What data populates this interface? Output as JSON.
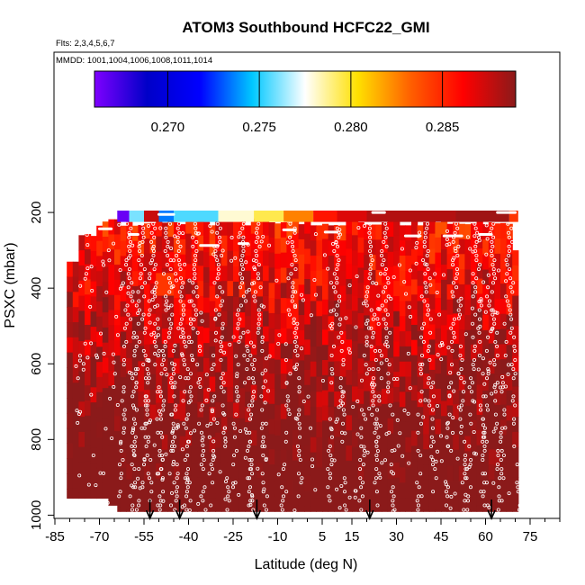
{
  "chart_data": {
    "type": "heatmap",
    "title": "ATOM3 Southbound HCFC22_GMI",
    "subtitle_flights": "Flts: 2,3,4,5,6,7",
    "subtitle_dates": "MMDD: 1001,1004,1006,1008,1011,1014",
    "xlabel": "Latitude (deg N)",
    "ylabel": "PSXC (mbar)",
    "xlim": [
      -85,
      85
    ],
    "ylim": [
      1000,
      0
    ],
    "y_reversed": true,
    "x_ticks": [
      -85,
      -70,
      -55,
      -40,
      -25,
      -10,
      5,
      15,
      30,
      45,
      60,
      75
    ],
    "x_tick_labels": [
      "-85",
      "-70",
      "-55",
      "-40",
      "-25",
      "-10",
      "5",
      "15",
      "30",
      "45",
      "60",
      "75"
    ],
    "y_ticks": [
      200,
      400,
      600,
      800,
      1000
    ],
    "y_tick_labels": [
      "200",
      "400",
      "600",
      "800",
      "1000"
    ],
    "colorbar": {
      "range": [
        0.266,
        0.289
      ],
      "ticks": [
        0.27,
        0.275,
        0.28,
        0.285
      ],
      "tick_labels": [
        "0.270",
        "0.275",
        "0.280",
        "0.285"
      ],
      "colors": [
        "#7f00ff",
        "#0000c8",
        "#0000ff",
        "#00c8ff",
        "#ffffff",
        "#ffe000",
        "#ff6000",
        "#ff0000",
        "#8b1a1a"
      ]
    },
    "curtain": {
      "lat_range": [
        -81,
        71
      ],
      "top_pressure": 190,
      "bottom_pressure": 990,
      "typical_value": 0.2885,
      "high_altitude_strip": {
        "pressure_range": [
          195,
          225
        ],
        "segments": [
          {
            "lat": [
              -64,
              -60
            ],
            "value": 0.2665
          },
          {
            "lat": [
              -60,
              -55
            ],
            "value": 0.276
          },
          {
            "lat": [
              -55,
              -50
            ],
            "value": 0.2875
          },
          {
            "lat": [
              -50,
              -45
            ],
            "value": 0.2735
          },
          {
            "lat": [
              -45,
              -30
            ],
            "value": 0.2755
          },
          {
            "lat": [
              -30,
              -18
            ],
            "value": 0.278
          },
          {
            "lat": [
              -18,
              -8
            ],
            "value": 0.2795
          },
          {
            "lat": [
              -8,
              2
            ],
            "value": 0.2825
          },
          {
            "lat": [
              2,
              10
            ],
            "value": 0.2855
          },
          {
            "lat": [
              10,
              20
            ],
            "value": 0.287
          },
          {
            "lat": [
              20,
              50
            ],
            "value": 0.288
          },
          {
            "lat": [
              50,
              68
            ],
            "value": 0.2885
          },
          {
            "lat": [
              68,
              71
            ],
            "value": 0.2845
          }
        ]
      },
      "anomalies": [
        {
          "lat": [
            -51,
            -45
          ],
          "pressure": [
            360,
            420
          ],
          "value": 0.2845
        }
      ]
    },
    "profile_arrows_lat": [
      -53,
      -43,
      -17,
      21,
      62
    ],
    "grid": false,
    "legend": "colorbar-top"
  }
}
